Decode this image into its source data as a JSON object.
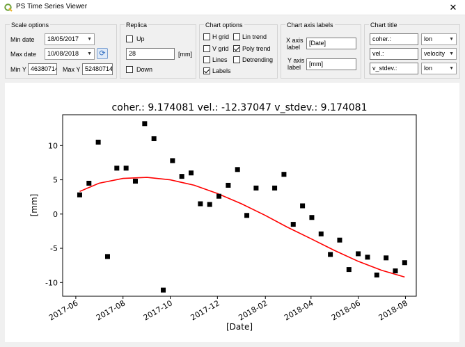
{
  "window": {
    "title": "PS Time Series Viewer",
    "close_glyph": "✕"
  },
  "scale_options": {
    "title": "Scale options",
    "min_date_label": "Min date",
    "min_date": "18/05/2017",
    "max_date_label": "Max date",
    "max_date": "10/08/2018",
    "min_y_label": "Min Y",
    "min_y": "46380714",
    "max_y_label": "Max Y",
    "max_y": "52480714"
  },
  "replica": {
    "title": "Replica",
    "up_label": "Up",
    "up_checked": false,
    "value": "28",
    "unit": "[mm]",
    "down_label": "Down",
    "down_checked": false
  },
  "chart_options": {
    "title": "Chart options",
    "h_grid": "H grid",
    "v_grid": "V grid",
    "lines": "Lines",
    "labels": "Labels",
    "lin_trend": "Lin trend",
    "poly_trend": "Poly trend",
    "detrending": "Detrending",
    "checked": {
      "h_grid": false,
      "v_grid": false,
      "lines": false,
      "labels": true,
      "lin_trend": false,
      "poly_trend": true,
      "detrending": false
    }
  },
  "axis_labels": {
    "title": "Chart axis labels",
    "x_label_text_1": "X axis",
    "x_label_text_2": "label",
    "x_value": "[Date]",
    "y_label_text_1": "Y axis",
    "y_label_text_2": "label",
    "y_value": "[mm]"
  },
  "chart_title_opts": {
    "title": "Chart title",
    "rows": [
      {
        "text": "coher.:",
        "select": "lon"
      },
      {
        "text": "vel.:",
        "select": "velocity"
      },
      {
        "text": "v_stdev.:",
        "select": "lon"
      }
    ]
  },
  "chart_data": {
    "type": "scatter",
    "title": "coher.: 9.174081 vel.: -12.37047 v_stdev.: 9.174081",
    "xlabel": "[Date]",
    "ylabel": "[mm]",
    "xlim": [
      "2017-05-15",
      "2018-08-15"
    ],
    "ylim": [
      -12,
      14.5
    ],
    "x_ticks": [
      "2017-06",
      "2017-08",
      "2017-10",
      "2017-12",
      "2018-02",
      "2018-04",
      "2018-06",
      "2018-08"
    ],
    "y_ticks": [
      -10,
      -5,
      0,
      5,
      10
    ],
    "grid": false,
    "marker_color": "#000000",
    "trend_color": "#ff0000",
    "points": [
      [
        "2017-06-06",
        2.8
      ],
      [
        "2017-06-18",
        4.5
      ],
      [
        "2017-06-30",
        10.5
      ],
      [
        "2017-07-12",
        -6.2
      ],
      [
        "2017-07-24",
        6.7
      ],
      [
        "2017-08-05",
        6.7
      ],
      [
        "2017-08-17",
        4.8
      ],
      [
        "2017-08-29",
        13.2
      ],
      [
        "2017-09-10",
        11.0
      ],
      [
        "2017-09-22",
        -11.1
      ],
      [
        "2017-10-04",
        7.8
      ],
      [
        "2017-10-16",
        5.5
      ],
      [
        "2017-10-28",
        6.0
      ],
      [
        "2017-11-09",
        1.5
      ],
      [
        "2017-11-21",
        1.4
      ],
      [
        "2017-12-03",
        2.6
      ],
      [
        "2017-12-15",
        4.2
      ],
      [
        "2017-12-27",
        6.5
      ],
      [
        "2018-01-08",
        -0.2
      ],
      [
        "2018-01-20",
        3.8
      ],
      [
        "2018-02-13",
        3.8
      ],
      [
        "2018-02-25",
        5.8
      ],
      [
        "2018-03-09",
        -1.5
      ],
      [
        "2018-03-21",
        1.2
      ],
      [
        "2018-04-02",
        -0.5
      ],
      [
        "2018-04-14",
        -2.9
      ],
      [
        "2018-04-26",
        -5.9
      ],
      [
        "2018-05-08",
        -3.8
      ],
      [
        "2018-05-20",
        -8.1
      ],
      [
        "2018-06-01",
        -5.8
      ],
      [
        "2018-06-13",
        -6.3
      ],
      [
        "2018-06-25",
        -8.9
      ],
      [
        "2018-07-07",
        -6.4
      ],
      [
        "2018-07-19",
        -8.3
      ],
      [
        "2018-07-31",
        -7.1
      ]
    ],
    "trend": [
      [
        "2017-06-06",
        3.3
      ],
      [
        "2017-07-01",
        4.5
      ],
      [
        "2017-08-01",
        5.2
      ],
      [
        "2017-09-01",
        5.35
      ],
      [
        "2017-10-01",
        5.0
      ],
      [
        "2017-11-01",
        4.2
      ],
      [
        "2017-12-01",
        3.0
      ],
      [
        "2018-01-01",
        1.5
      ],
      [
        "2018-02-01",
        -0.2
      ],
      [
        "2018-03-01",
        -1.9
      ],
      [
        "2018-04-01",
        -3.6
      ],
      [
        "2018-05-01",
        -5.3
      ],
      [
        "2018-06-01",
        -6.9
      ],
      [
        "2018-07-01",
        -8.2
      ],
      [
        "2018-07-31",
        -9.2
      ]
    ]
  }
}
